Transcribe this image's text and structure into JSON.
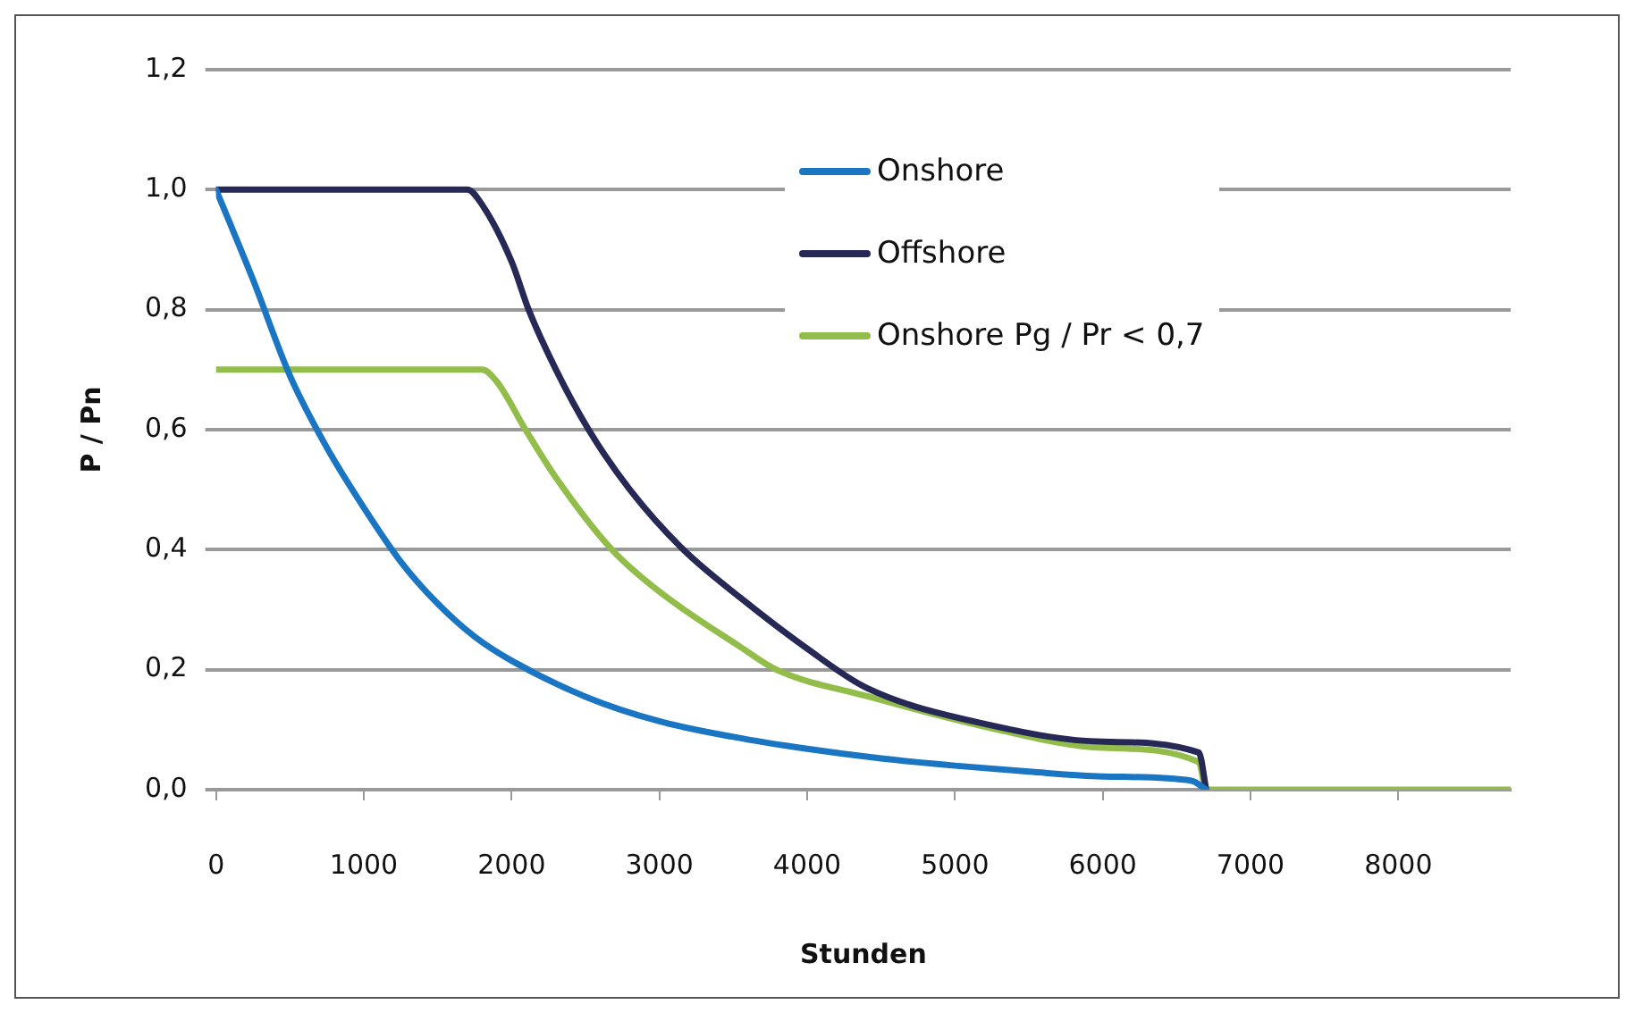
{
  "chart_data": {
    "type": "line",
    "xlabel": "Stunden",
    "ylabel": "P / Pn",
    "xlim": [
      0,
      8760
    ],
    "xticks": [
      0,
      1000,
      2000,
      3000,
      4000,
      5000,
      6000,
      7000,
      8000
    ],
    "ylim": [
      0,
      1.2
    ],
    "yticks": [
      {
        "value": 0,
        "label": "0,0"
      },
      {
        "value": 0.2,
        "label": "0,2"
      },
      {
        "value": 0.4,
        "label": "0,4"
      },
      {
        "value": 0.6,
        "label": "0,6"
      },
      {
        "value": 0.8,
        "label": "0,8"
      },
      {
        "value": 1.0,
        "label": "1,0"
      },
      {
        "value": 1.2,
        "label": "1,2"
      }
    ],
    "grid": "y",
    "legend": "top right",
    "marker": "none",
    "line_style": "solid",
    "series": [
      {
        "name": "Onshore",
        "color": "#1a75c2",
        "x": [
          0,
          250,
          500,
          750,
          1000,
          1250,
          1500,
          1750,
          2000,
          2500,
          3000,
          3500,
          4000,
          4500,
          5000,
          5500,
          6000,
          6600,
          6700
        ],
        "values": [
          1.0,
          0.85,
          0.69,
          0.57,
          0.47,
          0.38,
          0.31,
          0.255,
          0.215,
          0.155,
          0.114,
          0.088,
          0.068,
          0.052,
          0.04,
          0.03,
          0.022,
          0.015,
          0
        ]
      },
      {
        "name": "Offshore",
        "color": "#262856",
        "x": [
          0,
          1700,
          1800,
          2000,
          2115,
          2300,
          2521,
          2800,
          3162,
          3547,
          4000,
          4400,
          5250,
          6000,
          6650,
          6700
        ],
        "values": [
          1.0,
          1.0,
          0.975,
          0.88,
          0.8,
          0.7,
          0.6,
          0.5,
          0.4,
          0.32,
          0.235,
          0.17,
          0.107,
          0.08,
          0.062,
          0
        ]
      },
      {
        "name": "Onshore Pg / Pr < 0,7",
        "color": "#92bd4a",
        "x": [
          0,
          1800,
          1900,
          2094,
          2300,
          2679,
          3000,
          3547,
          3791,
          4402,
          5256,
          6000,
          6650,
          6700,
          8760
        ],
        "values": [
          0.7,
          0.7,
          0.68,
          0.6,
          0.52,
          0.4,
          0.33,
          0.238,
          0.2,
          0.156,
          0.102,
          0.07,
          0.046,
          0,
          0
        ]
      }
    ]
  }
}
